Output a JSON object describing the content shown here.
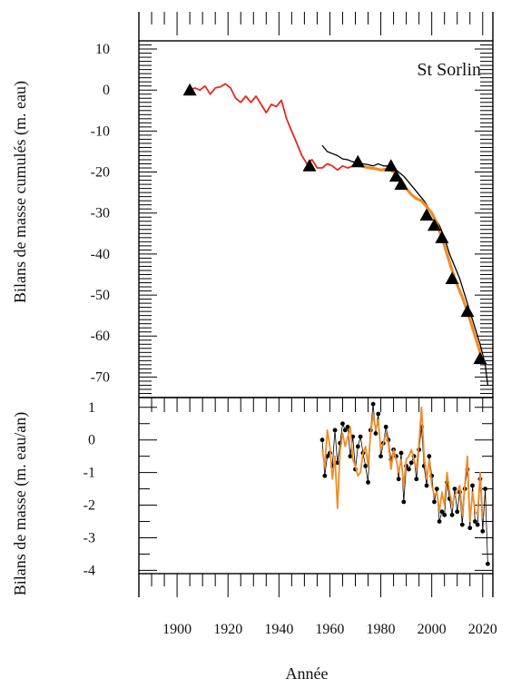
{
  "chart_data": [
    {
      "type": "line",
      "panel": "top",
      "annotation": "St Sorlin",
      "ylabel": "Bilans de masse cumulés (m. eau)",
      "xlim": [
        1885,
        2024
      ],
      "ylim": [
        -75,
        12
      ],
      "yticks": [
        10,
        0,
        -10,
        -20,
        -30,
        -40,
        -50,
        -60,
        -70
      ],
      "grid": false,
      "series": [
        {
          "color": "#e8281e",
          "x": [
            1905,
            1907,
            1909,
            1911,
            1913,
            1915,
            1917,
            1919,
            1921,
            1923,
            1925,
            1927,
            1929,
            1931,
            1933,
            1935,
            1937,
            1939,
            1941,
            1943,
            1945,
            1947,
            1949,
            1951,
            1953,
            1955,
            1957,
            1959,
            1961,
            1963,
            1965,
            1967,
            1969,
            1971
          ],
          "y": [
            0,
            0.5,
            0,
            1,
            -1,
            0.5,
            0.8,
            1.5,
            0.5,
            -2,
            -3,
            -1.5,
            -3,
            -1.5,
            -3.5,
            -5.5,
            -3.5,
            -4,
            -2.5,
            -7,
            -10,
            -13,
            -16,
            -18,
            -17,
            -19,
            -19,
            -18,
            -18.5,
            -19.5,
            -18.5,
            -19,
            -18.5,
            -18
          ]
        },
        {
          "color": "#000000",
          "x": [
            1957,
            1959,
            1961,
            1963,
            1965,
            1967,
            1969,
            1971,
            1973,
            1975,
            1977,
            1979,
            1981,
            1983,
            1985,
            1987,
            1989,
            1991,
            1993,
            1995,
            1997,
            1999,
            2001,
            2003,
            2005,
            2007,
            2009,
            2011,
            2013,
            2015,
            2017,
            2019,
            2021,
            2022
          ],
          "y": [
            -13.5,
            -15,
            -15.5,
            -16,
            -16.8,
            -17,
            -17.5,
            -17.5,
            -18,
            -18.2,
            -18.5,
            -18,
            -18.5,
            -18.5,
            -19,
            -20,
            -21,
            -22.5,
            -24,
            -25.5,
            -27,
            -29,
            -31,
            -33,
            -36,
            -40,
            -43,
            -46,
            -50,
            -54,
            -58,
            -62,
            -67,
            -72
          ]
        },
        {
          "color": "#f08c28",
          "x": [
            1970,
            1972,
            1974,
            1976,
            1978,
            1980,
            1982,
            1984,
            1986,
            1988,
            1990,
            1992,
            1994,
            1996,
            1998,
            2000,
            2002,
            2004,
            2006,
            2008,
            2010,
            2012,
            2014,
            2016,
            2018,
            2020
          ],
          "y": [
            -18,
            -18.5,
            -18.8,
            -19,
            -19.2,
            -19.5,
            -19.3,
            -19.5,
            -20.5,
            -22,
            -24,
            -25.5,
            -26.5,
            -27,
            -28.5,
            -30,
            -32.5,
            -36,
            -40,
            -44,
            -47.5,
            -50.5,
            -54,
            -58,
            -62,
            -66
          ]
        }
      ],
      "markers": {
        "shape": "triangle",
        "points": [
          [
            1905,
            0
          ],
          [
            1952,
            -18.5
          ],
          [
            1971,
            -17.5
          ],
          [
            1984,
            -18.5
          ],
          [
            1986,
            -21
          ],
          [
            1988,
            -23
          ],
          [
            1998,
            -30.5
          ],
          [
            2001,
            -33
          ],
          [
            2004,
            -36
          ],
          [
            2008,
            -46
          ],
          [
            2014,
            -54
          ],
          [
            2019,
            -65.5
          ]
        ]
      }
    },
    {
      "type": "line",
      "panel": "bottom",
      "xlabel": "Année",
      "ylabel": "Bilans de masse (m. eau/an)",
      "xlim": [
        1885,
        2024
      ],
      "ylim": [
        -4.1,
        1.3
      ],
      "yticks": [
        1,
        0,
        -1,
        -2,
        -3,
        -4
      ],
      "xticks": [
        1900,
        1920,
        1940,
        1960,
        1980,
        2000,
        2020
      ],
      "grid": false,
      "series": [
        {
          "color": "#000000",
          "markers": true,
          "x": [
            1957,
            1958,
            1959,
            1960,
            1961,
            1962,
            1963,
            1964,
            1965,
            1966,
            1967,
            1968,
            1969,
            1970,
            1971,
            1972,
            1973,
            1974,
            1975,
            1976,
            1977,
            1978,
            1979,
            1980,
            1981,
            1982,
            1983,
            1984,
            1985,
            1986,
            1987,
            1988,
            1989,
            1990,
            1991,
            1992,
            1993,
            1994,
            1995,
            1996,
            1997,
            1998,
            1999,
            2000,
            2001,
            2002,
            2003,
            2004,
            2005,
            2006,
            2007,
            2008,
            2009,
            2010,
            2011,
            2012,
            2013,
            2014,
            2015,
            2016,
            2017,
            2018,
            2019,
            2020,
            2021,
            2022
          ],
          "y": [
            0,
            -1.1,
            -0.5,
            -0.4,
            -0.8,
            0.3,
            -0.7,
            -0.1,
            0.5,
            0.3,
            0.4,
            -0.5,
            0.1,
            -0.9,
            -0.2,
            0.1,
            -0.4,
            -0.8,
            -1.3,
            0.3,
            1.1,
            0.2,
            0.8,
            -0.5,
            -0.1,
            0.4,
            0,
            -0.6,
            -0.3,
            -0.5,
            -1.2,
            -0.4,
            -1.9,
            -0.8,
            -0.9,
            -0.7,
            -0.5,
            -1.2,
            -0.3,
            0.4,
            -0.8,
            -1.4,
            -0.5,
            -1.1,
            -1.9,
            -1.5,
            -2.5,
            -2.2,
            -2.3,
            -1.3,
            -1.8,
            -2.3,
            -1.5,
            -2.2,
            -1.6,
            -2.6,
            -1.5,
            -0.9,
            -2.7,
            -1.4,
            -2.5,
            -2.6,
            -1.2,
            -2.8,
            -1.5,
            -3.8
          ]
        },
        {
          "color": "#f08c28",
          "x": [
            1957,
            1958,
            1959,
            1960,
            1961,
            1962,
            1963,
            1964,
            1965,
            1966,
            1967,
            1968,
            1969,
            1970,
            1971,
            1972,
            1973,
            1974,
            1975,
            1976,
            1977,
            1978,
            1979,
            1980,
            1981,
            1982,
            1983,
            1984,
            1985,
            1986,
            1987,
            1988,
            1989,
            1990,
            1991,
            1992,
            1993,
            1994,
            1995,
            1996,
            1997,
            1998,
            1999,
            2000,
            2001,
            2002,
            2003,
            2004,
            2005,
            2006,
            2007,
            2008,
            2009,
            2010,
            2011,
            2012,
            2013,
            2014,
            2015,
            2016,
            2017,
            2018,
            2019,
            2020
          ],
          "y": [
            -0.3,
            -0.8,
            0.3,
            -0.2,
            -1.2,
            -0.5,
            -2.1,
            -0.3,
            0.2,
            -0.2,
            0.1,
            0.4,
            -0.6,
            -0.8,
            -1.1,
            -1.0,
            -0.4,
            -0.2,
            -0.8,
            0.2,
            0.8,
            0.3,
            0.6,
            -0.3,
            -0.1,
            0.2,
            -0.1,
            -0.9,
            -0.3,
            -0.6,
            -1.0,
            -0.6,
            -1.4,
            -0.6,
            -0.5,
            -0.3,
            -0.6,
            -0.9,
            -0.1,
            1.0,
            -0.5,
            -1.2,
            -0.6,
            -1.4,
            -1.7,
            -1.6,
            -2.2,
            -1.6,
            -2.0,
            -1.0,
            -1.6,
            -2.0,
            -1.7,
            -1.6,
            -1.4,
            -2.3,
            -1.4,
            -0.5,
            -2.5,
            -1.6,
            -2.2,
            -2.3,
            -1.0,
            -2.4
          ]
        }
      ]
    }
  ]
}
